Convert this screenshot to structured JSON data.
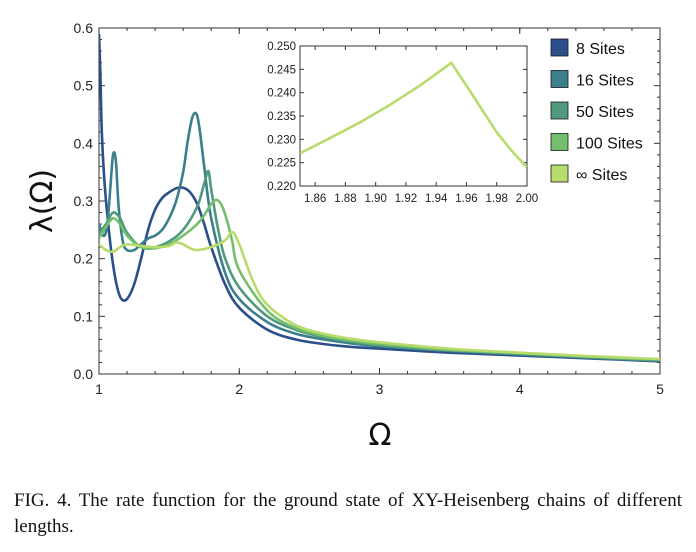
{
  "caption": "FIG. 4.  The rate function for the ground state of XY-Heisenberg chains of different lengths.",
  "chart_data": [
    {
      "type": "line",
      "xlabel": "Ω",
      "ylabel": "λ(Ω)",
      "xlim": [
        1,
        5
      ],
      "ylim": [
        0,
        0.6
      ],
      "xticks": [
        1,
        2,
        3,
        4,
        5
      ],
      "yticks": [
        0.0,
        0.1,
        0.2,
        0.3,
        0.4,
        0.5,
        0.6
      ],
      "xtick_labels": [
        "1",
        "2",
        "3",
        "4",
        "5"
      ],
      "ytick_labels": [
        "0.0",
        "0.1",
        "0.2",
        "0.3",
        "0.4",
        "0.5",
        "0.6"
      ],
      "legend_position": "top-right",
      "series": [
        {
          "name": "8 Sites",
          "color": "#2a4f8a",
          "x": [
            1.0,
            1.01,
            1.02,
            1.04,
            1.07,
            1.1,
            1.13,
            1.16,
            1.2,
            1.25,
            1.3,
            1.35,
            1.4,
            1.45,
            1.5,
            1.55,
            1.6,
            1.65,
            1.7,
            1.75,
            1.8,
            1.9,
            2.0,
            2.2,
            2.4,
            2.6,
            2.8,
            3.0,
            3.5,
            4.0,
            4.5,
            5.0
          ],
          "y": [
            0.59,
            0.52,
            0.42,
            0.33,
            0.25,
            0.19,
            0.15,
            0.13,
            0.13,
            0.155,
            0.2,
            0.25,
            0.285,
            0.305,
            0.315,
            0.322,
            0.323,
            0.315,
            0.295,
            0.26,
            0.22,
            0.155,
            0.115,
            0.077,
            0.06,
            0.052,
            0.047,
            0.044,
            0.037,
            0.032,
            0.027,
            0.022
          ]
        },
        {
          "name": "16 Sites",
          "color": "#3b7f8c",
          "x": [
            1.0,
            1.02,
            1.04,
            1.06,
            1.08,
            1.1,
            1.12,
            1.14,
            1.17,
            1.2,
            1.25,
            1.3,
            1.35,
            1.4,
            1.45,
            1.5,
            1.55,
            1.6,
            1.63,
            1.66,
            1.68,
            1.7,
            1.72,
            1.75,
            1.8,
            1.9,
            2.0,
            2.2,
            2.4,
            2.6,
            2.8,
            3.0,
            3.5,
            4.0,
            4.5,
            5.0
          ],
          "y": [
            0.26,
            0.245,
            0.24,
            0.26,
            0.32,
            0.38,
            0.37,
            0.29,
            0.23,
            0.215,
            0.215,
            0.225,
            0.235,
            0.24,
            0.25,
            0.27,
            0.3,
            0.35,
            0.4,
            0.44,
            0.452,
            0.448,
            0.42,
            0.36,
            0.27,
            0.175,
            0.13,
            0.09,
            0.07,
            0.06,
            0.053,
            0.048,
            0.04,
            0.034,
            0.028,
            0.023
          ]
        },
        {
          "name": "50 Sites",
          "color": "#4f9a7c",
          "x": [
            1.0,
            1.05,
            1.1,
            1.15,
            1.2,
            1.3,
            1.4,
            1.5,
            1.6,
            1.7,
            1.75,
            1.78,
            1.8,
            1.85,
            1.9,
            2.0,
            2.2,
            2.4,
            2.6,
            2.8,
            3.0,
            3.5,
            4.0,
            4.5,
            5.0
          ],
          "y": [
            0.245,
            0.26,
            0.28,
            0.27,
            0.245,
            0.22,
            0.22,
            0.23,
            0.25,
            0.29,
            0.33,
            0.352,
            0.32,
            0.25,
            0.2,
            0.15,
            0.1,
            0.077,
            0.064,
            0.056,
            0.05,
            0.041,
            0.035,
            0.029,
            0.024
          ]
        },
        {
          "name": "100 Sites",
          "color": "#74bf6e",
          "x": [
            1.0,
            1.05,
            1.1,
            1.15,
            1.2,
            1.3,
            1.4,
            1.5,
            1.6,
            1.7,
            1.75,
            1.8,
            1.84,
            1.88,
            1.92,
            1.95,
            2.0,
            2.2,
            2.4,
            2.6,
            2.8,
            3.0,
            3.5,
            4.0,
            4.5,
            5.0
          ],
          "y": [
            0.235,
            0.255,
            0.27,
            0.26,
            0.24,
            0.22,
            0.218,
            0.225,
            0.24,
            0.26,
            0.275,
            0.295,
            0.302,
            0.29,
            0.26,
            0.23,
            0.18,
            0.11,
            0.08,
            0.066,
            0.058,
            0.052,
            0.042,
            0.036,
            0.03,
            0.025
          ]
        },
        {
          "name": "∞ Sites",
          "color": "#b8dc6b",
          "x": [
            1.0,
            1.05,
            1.1,
            1.15,
            1.2,
            1.3,
            1.4,
            1.5,
            1.55,
            1.6,
            1.65,
            1.7,
            1.8,
            1.9,
            1.95,
            2.0,
            2.1,
            2.2,
            2.4,
            2.6,
            2.8,
            3.0,
            3.5,
            4.0,
            4.5,
            5.0
          ],
          "y": [
            0.225,
            0.215,
            0.212,
            0.22,
            0.225,
            0.222,
            0.22,
            0.222,
            0.228,
            0.225,
            0.218,
            0.215,
            0.22,
            0.232,
            0.246,
            0.225,
            0.16,
            0.12,
            0.085,
            0.07,
            0.061,
            0.055,
            0.044,
            0.037,
            0.031,
            0.026
          ]
        }
      ]
    },
    {
      "type": "line",
      "xlim": [
        1.85,
        2.0
      ],
      "ylim": [
        0.22,
        0.25
      ],
      "xticks": [
        1.86,
        1.88,
        1.9,
        1.92,
        1.94,
        1.96,
        1.98,
        2.0
      ],
      "yticks": [
        0.22,
        0.225,
        0.23,
        0.235,
        0.24,
        0.245,
        0.25
      ],
      "xtick_labels": [
        "1.86",
        "1.88",
        "1.90",
        "1.92",
        "1.94",
        "1.96",
        "1.98",
        "2.00"
      ],
      "ytick_labels": [
        "0.220",
        "0.225",
        "0.230",
        "0.235",
        "0.240",
        "0.245",
        "0.250"
      ],
      "series": [
        {
          "color": "#b8dc6b",
          "x": [
            1.85,
            1.87,
            1.89,
            1.91,
            1.93,
            1.945,
            1.95,
            1.96,
            1.97,
            1.98,
            1.99,
            2.0
          ],
          "y": [
            0.227,
            0.2303,
            0.2337,
            0.2375,
            0.2417,
            0.2452,
            0.2464,
            0.2415,
            0.2365,
            0.2315,
            0.2275,
            0.224
          ]
        }
      ]
    }
  ]
}
